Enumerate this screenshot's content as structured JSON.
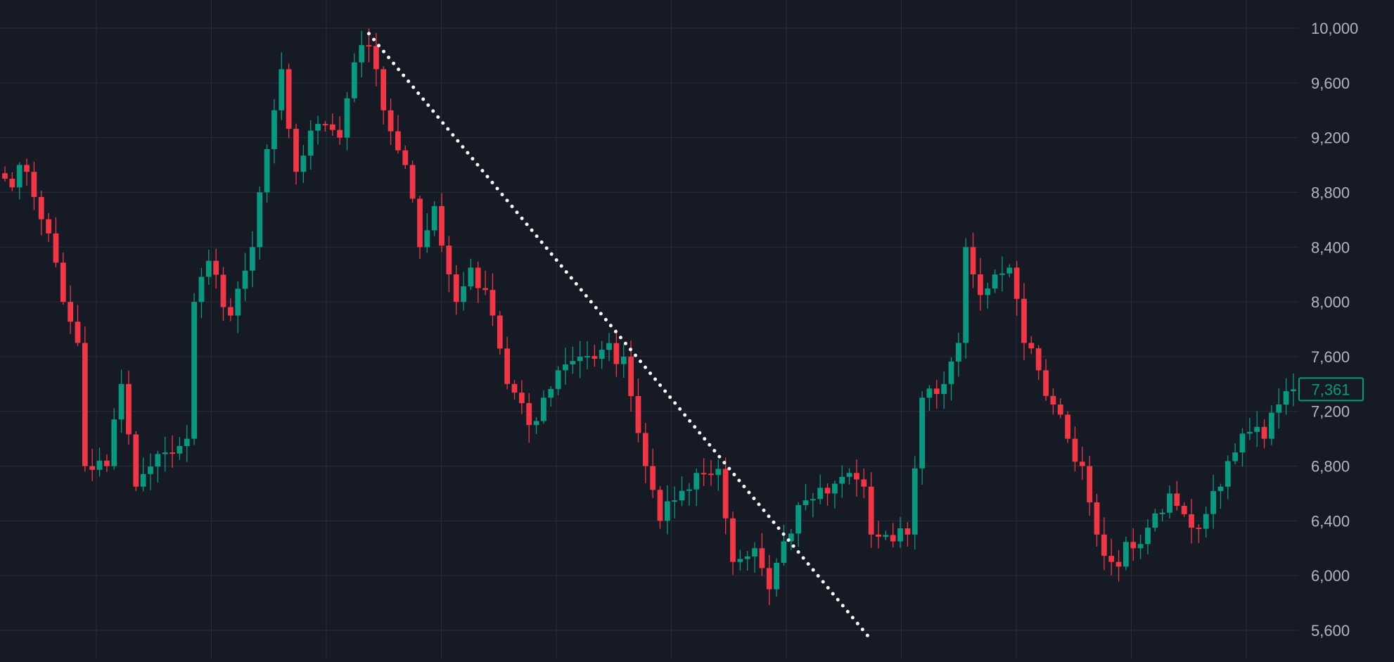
{
  "theme": {
    "background": "#161a25",
    "grid": "#2a2e39",
    "axis_text": "#b2b5be",
    "up": "#089981",
    "down": "#f23645",
    "trendline": "#ffffff",
    "last_price_bg": "#161a25"
  },
  "chart_data": {
    "type": "candlestick",
    "title": "",
    "xlabel": "",
    "ylabel": "",
    "ylim": [
      5480,
      10200
    ],
    "y_ticks": [
      {
        "value": 10000,
        "label": "10,000"
      },
      {
        "value": 9600,
        "label": "9,600"
      },
      {
        "value": 9200,
        "label": "9,200"
      },
      {
        "value": 8800,
        "label": "8,800"
      },
      {
        "value": 8400,
        "label": "8,400"
      },
      {
        "value": 8000,
        "label": "8,000"
      },
      {
        "value": 7600,
        "label": "7,600"
      },
      {
        "value": 7200,
        "label": "7,200"
      },
      {
        "value": 6800,
        "label": "6,800"
      },
      {
        "value": 6400,
        "label": "6,400"
      },
      {
        "value": 6000,
        "label": "6,000"
      },
      {
        "value": 5600,
        "label": "5,600"
      }
    ],
    "last_price": {
      "value": 7361,
      "label": "7,361"
    },
    "grid": true,
    "price_axis": "right",
    "trendline": {
      "style": "dotted",
      "from": {
        "bar": 50,
        "price": 9960
      },
      "to": {
        "bar": 119,
        "price": 5530
      }
    },
    "anchors": [
      [
        0,
        8900
      ],
      [
        3,
        8950
      ],
      [
        6,
        8500
      ],
      [
        8,
        8000
      ],
      [
        10,
        7700
      ],
      [
        11,
        6800
      ],
      [
        14,
        6800
      ],
      [
        16,
        7400
      ],
      [
        18,
        6650
      ],
      [
        22,
        6900
      ],
      [
        25,
        7000
      ],
      [
        26,
        8000
      ],
      [
        28,
        8300
      ],
      [
        31,
        7900
      ],
      [
        34,
        8400
      ],
      [
        37,
        9400
      ],
      [
        38,
        9700
      ],
      [
        40,
        8950
      ],
      [
        43,
        9300
      ],
      [
        46,
        9200
      ],
      [
        48,
        9750
      ],
      [
        50,
        9870
      ],
      [
        52,
        9400
      ],
      [
        55,
        9000
      ],
      [
        57,
        8400
      ],
      [
        59,
        8700
      ],
      [
        62,
        8000
      ],
      [
        64,
        8250
      ],
      [
        67,
        7900
      ],
      [
        69,
        7400
      ],
      [
        72,
        7100
      ],
      [
        74,
        7300
      ],
      [
        76,
        7500
      ],
      [
        79,
        7600
      ],
      [
        82,
        7650
      ],
      [
        85,
        7600
      ],
      [
        88,
        6800
      ],
      [
        90,
        6400
      ],
      [
        92,
        6550
      ],
      [
        95,
        6750
      ],
      [
        98,
        6780
      ],
      [
        100,
        6100
      ],
      [
        103,
        6200
      ],
      [
        105,
        5900
      ],
      [
        107,
        6250
      ],
      [
        110,
        6550
      ],
      [
        113,
        6600
      ],
      [
        116,
        6750
      ],
      [
        118,
        6650
      ],
      [
        119,
        6300
      ],
      [
        122,
        6250
      ],
      [
        124,
        6300
      ],
      [
        126,
        7300
      ],
      [
        129,
        7400
      ],
      [
        131,
        7700
      ],
      [
        132,
        8400
      ],
      [
        134,
        8050
      ],
      [
        136,
        8200
      ],
      [
        138,
        8250
      ],
      [
        140,
        7700
      ],
      [
        142,
        7500
      ],
      [
        144,
        7250
      ],
      [
        146,
        7000
      ],
      [
        148,
        6800
      ],
      [
        150,
        6300
      ],
      [
        152,
        6100
      ],
      [
        155,
        6200
      ],
      [
        157,
        6350
      ],
      [
        160,
        6600
      ],
      [
        163,
        6350
      ],
      [
        165,
        6450
      ],
      [
        167,
        6650
      ],
      [
        169,
        6900
      ],
      [
        171,
        7050
      ],
      [
        173,
        7000
      ],
      [
        175,
        7250
      ],
      [
        177,
        7361
      ]
    ]
  }
}
